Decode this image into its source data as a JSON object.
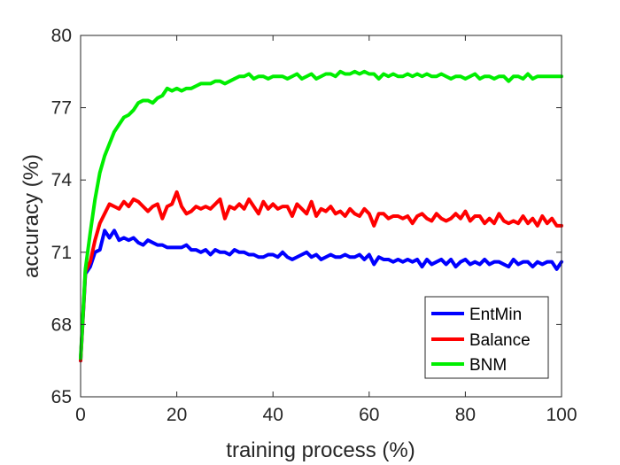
{
  "chart_data": {
    "type": "line",
    "xlabel": "training process (%)",
    "ylabel": "accuracy (%)",
    "xlim": [
      0,
      100
    ],
    "ylim": [
      65,
      80
    ],
    "xticks": [
      0,
      20,
      40,
      60,
      80,
      100
    ],
    "yticks": [
      65,
      68,
      71,
      74,
      77,
      80
    ],
    "grid": false,
    "legend_position": "bottom-right",
    "x": [
      0,
      1,
      2,
      3,
      4,
      5,
      6,
      7,
      8,
      9,
      10,
      11,
      12,
      13,
      14,
      15,
      16,
      17,
      18,
      19,
      20,
      21,
      22,
      23,
      24,
      25,
      26,
      27,
      28,
      29,
      30,
      31,
      32,
      33,
      34,
      35,
      36,
      37,
      38,
      39,
      40,
      41,
      42,
      43,
      44,
      45,
      46,
      47,
      48,
      49,
      50,
      51,
      52,
      53,
      54,
      55,
      56,
      57,
      58,
      59,
      60,
      61,
      62,
      63,
      64,
      65,
      66,
      67,
      68,
      69,
      70,
      71,
      72,
      73,
      74,
      75,
      76,
      77,
      78,
      79,
      80,
      81,
      82,
      83,
      84,
      85,
      86,
      87,
      88,
      89,
      90,
      91,
      92,
      93,
      94,
      95,
      96,
      97,
      98,
      99,
      100
    ],
    "series": [
      {
        "name": "EntMin",
        "color": "#0000ff",
        "values": [
          66.5,
          70.1,
          70.4,
          71.0,
          71.1,
          71.9,
          71.6,
          71.9,
          71.5,
          71.6,
          71.5,
          71.6,
          71.4,
          71.3,
          71.5,
          71.4,
          71.3,
          71.3,
          71.2,
          71.2,
          71.2,
          71.2,
          71.3,
          71.1,
          71.1,
          71.0,
          71.1,
          70.9,
          71.1,
          71.0,
          71.0,
          70.9,
          71.1,
          71.0,
          71.0,
          70.9,
          70.9,
          70.8,
          70.8,
          70.9,
          70.9,
          70.8,
          71.0,
          70.8,
          70.7,
          70.8,
          70.9,
          71.0,
          70.8,
          70.9,
          70.7,
          70.8,
          70.9,
          70.8,
          70.8,
          70.9,
          70.8,
          70.8,
          70.9,
          70.7,
          70.9,
          70.5,
          70.8,
          70.7,
          70.7,
          70.6,
          70.7,
          70.6,
          70.7,
          70.6,
          70.7,
          70.4,
          70.7,
          70.5,
          70.6,
          70.7,
          70.5,
          70.7,
          70.4,
          70.6,
          70.7,
          70.5,
          70.6,
          70.5,
          70.7,
          70.5,
          70.6,
          70.6,
          70.5,
          70.4,
          70.7,
          70.5,
          70.6,
          70.6,
          70.4,
          70.6,
          70.5,
          70.6,
          70.6,
          70.3,
          70.6
        ]
      },
      {
        "name": "Balance",
        "color": "#ff0000",
        "values": [
          66.5,
          70.2,
          70.6,
          71.5,
          72.2,
          72.6,
          73.0,
          72.9,
          72.8,
          73.1,
          72.9,
          73.2,
          73.1,
          72.9,
          72.7,
          72.9,
          73.0,
          72.4,
          72.9,
          73.0,
          73.5,
          72.9,
          72.6,
          72.7,
          72.9,
          72.8,
          72.9,
          72.8,
          73.0,
          73.2,
          72.4,
          72.9,
          72.8,
          73.0,
          72.8,
          73.2,
          72.9,
          72.6,
          73.1,
          72.8,
          73.0,
          72.8,
          72.9,
          72.9,
          72.5,
          73.0,
          72.8,
          72.6,
          73.1,
          72.5,
          72.8,
          72.7,
          72.9,
          72.6,
          72.7,
          72.5,
          72.8,
          72.6,
          72.5,
          72.8,
          72.6,
          72.1,
          72.6,
          72.6,
          72.4,
          72.5,
          72.5,
          72.4,
          72.5,
          72.2,
          72.5,
          72.6,
          72.4,
          72.3,
          72.6,
          72.4,
          72.3,
          72.4,
          72.6,
          72.4,
          72.7,
          72.3,
          72.5,
          72.5,
          72.2,
          72.4,
          72.2,
          72.6,
          72.3,
          72.2,
          72.3,
          72.2,
          72.5,
          72.2,
          72.4,
          72.1,
          72.5,
          72.2,
          72.4,
          72.1,
          72.1
        ]
      },
      {
        "name": "BNM",
        "color": "#00ee00",
        "values": [
          66.6,
          70.3,
          71.8,
          73.2,
          74.3,
          75.0,
          75.5,
          76.0,
          76.3,
          76.6,
          76.7,
          76.9,
          77.2,
          77.3,
          77.3,
          77.2,
          77.4,
          77.5,
          77.8,
          77.7,
          77.8,
          77.7,
          77.8,
          77.8,
          77.9,
          78.0,
          78.0,
          78.0,
          78.1,
          78.1,
          78.0,
          78.1,
          78.2,
          78.3,
          78.3,
          78.4,
          78.2,
          78.3,
          78.3,
          78.2,
          78.3,
          78.3,
          78.3,
          78.2,
          78.3,
          78.4,
          78.2,
          78.3,
          78.4,
          78.2,
          78.3,
          78.4,
          78.4,
          78.3,
          78.5,
          78.4,
          78.4,
          78.5,
          78.4,
          78.5,
          78.4,
          78.4,
          78.2,
          78.4,
          78.3,
          78.4,
          78.3,
          78.3,
          78.4,
          78.3,
          78.4,
          78.3,
          78.4,
          78.3,
          78.3,
          78.4,
          78.3,
          78.2,
          78.3,
          78.3,
          78.2,
          78.3,
          78.4,
          78.2,
          78.3,
          78.3,
          78.2,
          78.3,
          78.3,
          78.1,
          78.3,
          78.3,
          78.2,
          78.4,
          78.2,
          78.3,
          78.3,
          78.3,
          78.3,
          78.3,
          78.3
        ]
      }
    ]
  }
}
